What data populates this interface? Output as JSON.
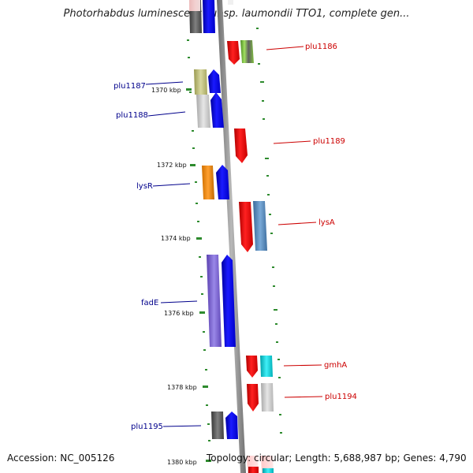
{
  "title": "Photorhabdus luminescens subsp. laumondii TTO1, complete gen...",
  "footer": {
    "accession": "Accession: NC_005126",
    "topology": "Topology: circular; Length: 5,688,987 bp; Genes: 4,790"
  },
  "ticks": [
    "1370 kbp",
    "1372 kbp",
    "1374 kbp",
    "1376 kbp",
    "1378 kbp",
    "1380 kbp"
  ],
  "genes_left": [
    {
      "label": "plu1187",
      "color": "#00008b"
    },
    {
      "label": "plu1188",
      "color": "#00008b"
    },
    {
      "label": "lysR",
      "color": "#00008b"
    },
    {
      "label": "fadE",
      "color": "#00008b"
    },
    {
      "label": "plu1195",
      "color": "#00008b"
    }
  ],
  "genes_right": [
    {
      "label": "plu1186",
      "color": "#cc0000"
    },
    {
      "label": "plu1189",
      "color": "#cc0000"
    },
    {
      "label": "lysA",
      "color": "#cc0000"
    },
    {
      "label": "gmhA",
      "color": "#cc0000"
    },
    {
      "label": "plu1194",
      "color": "#cc0000"
    }
  ],
  "colors": {
    "forward_strand": "#0000ff",
    "reverse_strand": "#ff0000",
    "backbone": "#8c8c8c",
    "tick": "#2e8b2e"
  }
}
